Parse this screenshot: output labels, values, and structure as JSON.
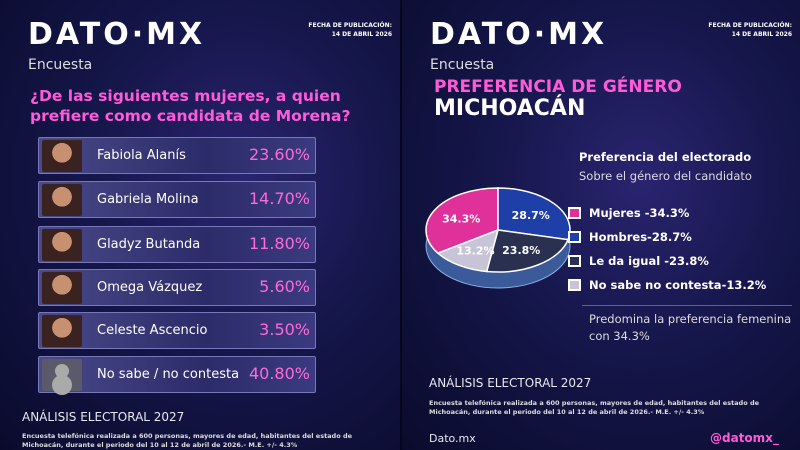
{
  "brand": "DATO·MX",
  "left": {
    "publication_label": "FECHA DE PUBLICACIÓN:",
    "publication_date": "14 DE ABRIL 2026",
    "kicker": "Encuesta",
    "question": "¿De las siguientes mujeres, a quien prefiere como candidata de Morena?",
    "candidates": [
      {
        "name": "Fabiola Alanís",
        "pct": "23.60%"
      },
      {
        "name": "Gabriela Molina",
        "pct": "14.70%"
      },
      {
        "name": "Gladyz Butanda",
        "pct": "11.80%"
      },
      {
        "name": "Omega Vázquez",
        "pct": "5.60%"
      },
      {
        "name": "Celeste Ascencio",
        "pct": "3.50%"
      },
      {
        "name": "No sabe / no contesta",
        "pct": "40.80%"
      }
    ],
    "footer_title": "ANÁLISIS ELECTORAL 2027",
    "footer_note": "Encuesta telefónica realizada a 600 personas, mayores de edad, habitantes del estado de Michoacán, durante el periodo del 10 al 12 de abril de 2026.- M.E. +/- 4.3%"
  },
  "right": {
    "publication_label": "FECHA DE PUBLICACIÓN:",
    "publication_date": "14 DE ABRIL 2026",
    "kicker": "Encuesta",
    "title": "PREFERENCIA DE GÉNERO",
    "subtitle": "MICHOACÁN",
    "footer_title": "ANÁLISIS ELECTORAL 2027",
    "footer_note": "Encuesta telefónica realizada a 600 personas, mayores de edad, habitantes del estado de Michoacán, durante el periodo del 10 al 12 de abril de 2026.- M.E. +/- 4.3%",
    "site": "Dato.mx",
    "handle": "@datomx_",
    "note": "Predomina la preferencia femenina con 34.3%"
  },
  "chart_data": {
    "type": "pie",
    "title": "Preferencia del electorado",
    "subtitle": "Sobre el género del candidato",
    "legend_position": "right",
    "series": [
      {
        "name": "Mujeres",
        "value": 34.3,
        "label": "34.3%",
        "legend": "Mujeres -34.3%",
        "color": "#e0309a"
      },
      {
        "name": "Hombres",
        "value": 28.7,
        "label": "28.7%",
        "legend": "Hombres-28.7%",
        "color": "#1f3fa8"
      },
      {
        "name": "Le da igual",
        "value": 23.8,
        "label": "23.8%",
        "legend": "Le da igual -23.8%",
        "color": "#2a3050"
      },
      {
        "name": "No sabe no contesta",
        "value": 13.2,
        "label": "13.2%",
        "legend": "No sabe no contesta-13.2%",
        "color": "#c8c4d8"
      }
    ]
  }
}
